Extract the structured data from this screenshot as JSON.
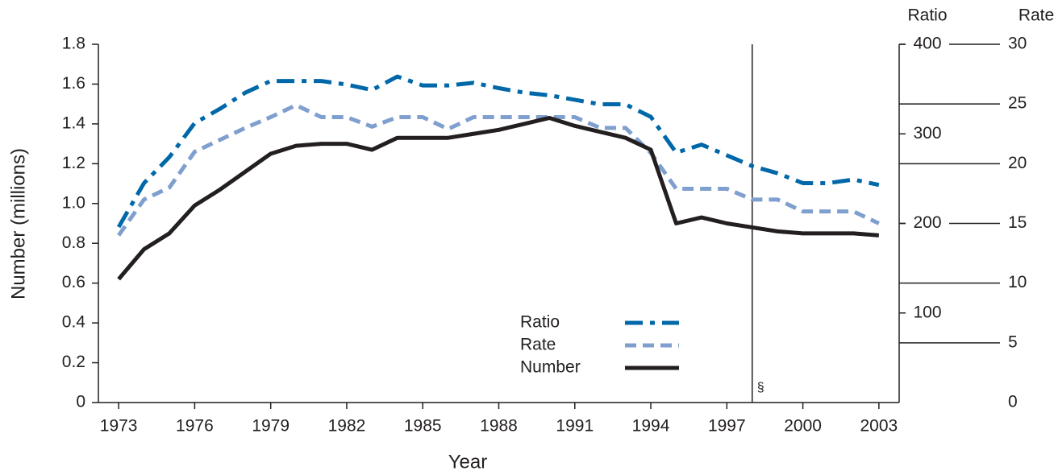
{
  "chart_data": {
    "type": "line",
    "x_label": "Year",
    "y_label": "Number (millions)",
    "y2_label": "Ratio",
    "y3_label": "Rate",
    "x": [
      1973,
      1974,
      1975,
      1976,
      1977,
      1978,
      1979,
      1980,
      1981,
      1982,
      1983,
      1984,
      1985,
      1986,
      1987,
      1988,
      1989,
      1990,
      1991,
      1992,
      1993,
      1994,
      1995,
      1996,
      1997,
      1998,
      1999,
      2000,
      2001,
      2002,
      2003
    ],
    "xlim": [
      1972.2,
      2003.8
    ],
    "xticks": [
      1973,
      1976,
      1979,
      1982,
      1985,
      1988,
      1991,
      1994,
      1997,
      2000,
      2003
    ],
    "ylim": [
      0,
      1.8
    ],
    "yticks": [
      0,
      0.2,
      0.4,
      0.6,
      0.8,
      {
        "value": 1,
        "label": "1.0"
      },
      1.2,
      1.4,
      1.6,
      1.8
    ],
    "y2lim": [
      0,
      400
    ],
    "y2ticks": [
      100,
      200,
      300,
      400
    ],
    "y3lim": [
      0,
      30
    ],
    "y3ticks": [
      0,
      5,
      10,
      15,
      20,
      25,
      30
    ],
    "series": [
      {
        "name": "Ratio",
        "color": "#0068a8",
        "dash": "dashdot",
        "axis": "y2",
        "values": [
          196,
          245,
          274,
          312,
          328,
          346,
          359,
          359,
          359,
          355,
          349,
          364,
          354,
          354,
          357,
          351,
          346,
          343,
          338,
          333,
          333,
          319,
          279,
          288,
          276,
          264,
          256,
          245,
          245,
          249,
          243
        ]
      },
      {
        "name": "Rate",
        "color": "#7f9fcf",
        "dash": "dashed",
        "axis": "y3",
        "values": [
          14.0,
          17.0,
          18.0,
          21.0,
          22.0,
          23.0,
          23.9,
          24.9,
          23.9,
          23.9,
          23.1,
          23.9,
          23.9,
          22.9,
          23.9,
          23.9,
          23.9,
          23.9,
          23.9,
          23.0,
          23.0,
          20.9,
          17.9,
          17.9,
          17.9,
          17.0,
          17.0,
          16.0,
          16.0,
          16.0,
          15.0
        ]
      },
      {
        "name": "Number",
        "color": "#231f20",
        "dash": "solid",
        "axis": "y",
        "values": [
          0.62,
          0.77,
          0.85,
          0.99,
          1.07,
          1.16,
          1.25,
          1.29,
          1.3,
          1.3,
          1.27,
          1.33,
          1.33,
          1.33,
          1.35,
          1.37,
          1.4,
          1.43,
          1.39,
          1.36,
          1.33,
          1.27,
          0.9,
          0.93,
          0.9,
          0.88,
          0.86,
          0.85,
          0.85,
          0.85,
          0.84
        ]
      }
    ],
    "annotations": [
      {
        "x": 1998,
        "label": "§"
      }
    ]
  }
}
